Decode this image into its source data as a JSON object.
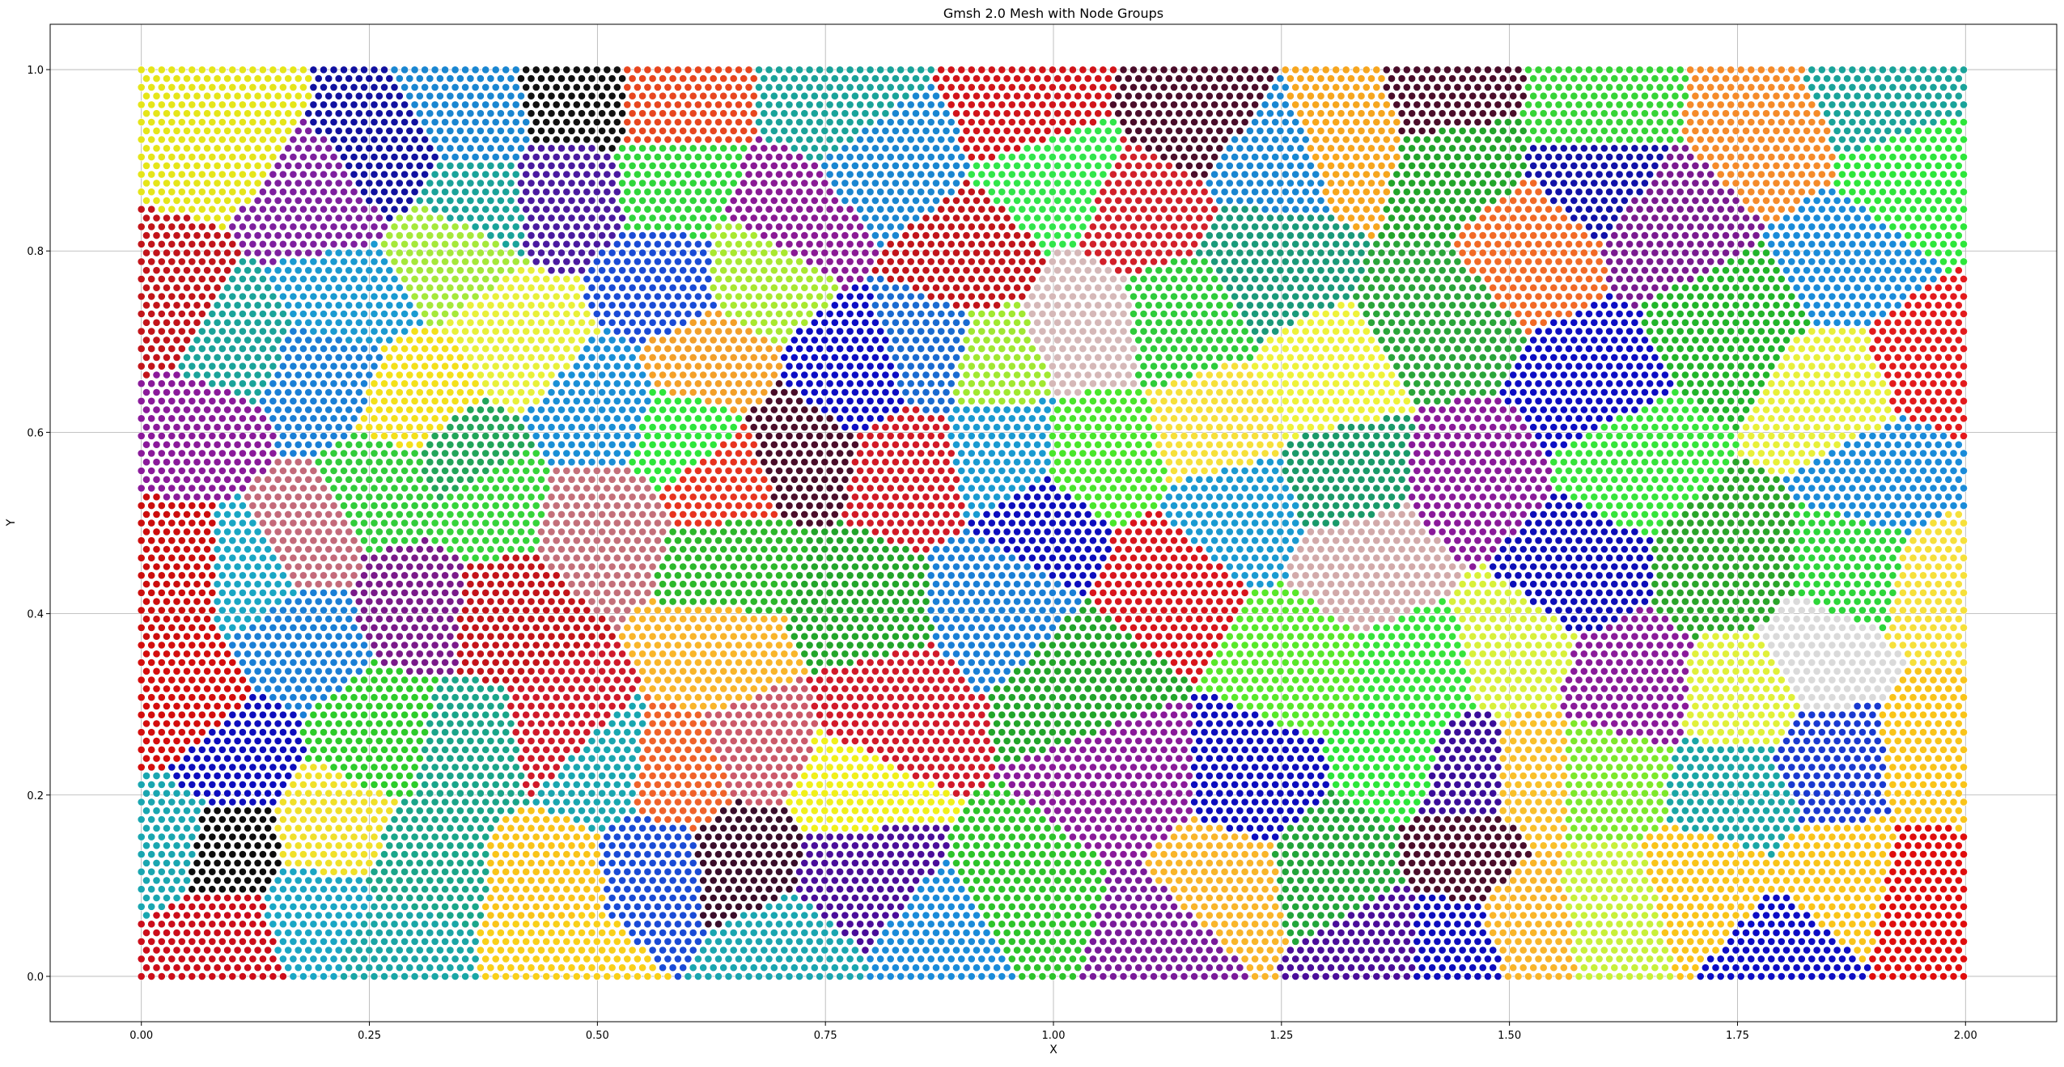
{
  "chart_data": {
    "type": "scatter",
    "title": "Gmsh 2.0 Mesh with Node Groups",
    "xlabel": "X",
    "ylabel": "Y",
    "xlim": [
      -0.1,
      2.1
    ],
    "ylim": [
      -0.05,
      1.05
    ],
    "x_ticks": [
      0.0,
      0.25,
      0.5,
      0.75,
      1.0,
      1.25,
      1.5,
      1.75,
      2.0
    ],
    "y_ticks": [
      0.0,
      0.2,
      0.4,
      0.6,
      0.8,
      1.0
    ],
    "x_tick_labels": [
      "0.00",
      "0.25",
      "0.50",
      "0.75",
      "1.00",
      "1.25",
      "1.50",
      "1.75",
      "2.00"
    ],
    "y_tick_labels": [
      "0.0",
      "0.2",
      "0.4",
      "0.6",
      "0.8",
      "1.0"
    ],
    "grid": true,
    "legend": false,
    "mesh": {
      "domain_x": [
        0.0,
        2.0
      ],
      "domain_y": [
        0.0,
        1.0
      ],
      "node_spacing": 0.0111,
      "marker_edge_color": "#ffffff"
    },
    "node_groups": [
      {
        "seed": [
          0.08,
          0.93
        ],
        "color": "#e5e51a"
      },
      {
        "seed": [
          0.2,
          0.85
        ],
        "color": "#7e1f9f"
      },
      {
        "seed": [
          0.27,
          0.9
        ],
        "color": "#1111a0"
      },
      {
        "seed": [
          0.36,
          0.95
        ],
        "color": "#1a86d1"
      },
      {
        "seed": [
          0.36,
          0.85
        ],
        "color": "#1aa39a"
      },
      {
        "seed": [
          0.34,
          0.81
        ],
        "color": "#a5e83a"
      },
      {
        "seed": [
          0.48,
          0.97
        ],
        "color": "#111111"
      },
      {
        "seed": [
          0.47,
          0.86
        ],
        "color": "#4a1aa0"
      },
      {
        "seed": [
          0.58,
          0.97
        ],
        "color": "#e8461f"
      },
      {
        "seed": [
          0.58,
          0.87
        ],
        "color": "#2fd63a"
      },
      {
        "seed": [
          0.57,
          0.77
        ],
        "color": "#1a4bd6"
      },
      {
        "seed": [
          0.68,
          0.78
        ],
        "color": "#a8e830"
      },
      {
        "seed": [
          0.71,
          0.83
        ],
        "color": "#8a1a95"
      },
      {
        "seed": [
          0.77,
          0.97
        ],
        "color": "#1aa39a"
      },
      {
        "seed": [
          0.82,
          0.9
        ],
        "color": "#1a86d1"
      },
      {
        "seed": [
          0.97,
          0.96
        ],
        "color": "#d2141a"
      },
      {
        "seed": [
          1.0,
          0.88
        ],
        "color": "#31e64a"
      },
      {
        "seed": [
          1.1,
          0.84
        ],
        "color": "#d2202a"
      },
      {
        "seed": [
          0.91,
          0.79
        ],
        "color": "#c2141a"
      },
      {
        "seed": [
          1.16,
          0.95
        ],
        "color": "#4a0d2a"
      },
      {
        "seed": [
          1.24,
          0.9
        ],
        "color": "#1a86d1"
      },
      {
        "seed": [
          1.32,
          0.93
        ],
        "color": "#f6a61f"
      },
      {
        "seed": [
          1.43,
          0.97
        ],
        "color": "#4a0d2a"
      },
      {
        "seed": [
          1.44,
          0.9
        ],
        "color": "#22a52a"
      },
      {
        "seed": [
          1.52,
          0.8
        ],
        "color": "#f26a26"
      },
      {
        "seed": [
          1.6,
          0.95
        ],
        "color": "#36d436"
      },
      {
        "seed": [
          1.6,
          0.89
        ],
        "color": "#1111a8"
      },
      {
        "seed": [
          1.68,
          0.83
        ],
        "color": "#7a1a90"
      },
      {
        "seed": [
          1.78,
          0.93
        ],
        "color": "#f58b2a"
      },
      {
        "seed": [
          1.9,
          0.98
        ],
        "color": "#1aa39a"
      },
      {
        "seed": [
          1.94,
          0.87
        ],
        "color": "#2de63a"
      },
      {
        "seed": [
          1.88,
          0.79
        ],
        "color": "#1a8bd9"
      },
      {
        "seed": [
          1.96,
          0.68
        ],
        "color": "#e31a1c"
      },
      {
        "seed": [
          0.03,
          0.74
        ],
        "color": "#c2141a"
      },
      {
        "seed": [
          0.1,
          0.7
        ],
        "color": "#1aa39a"
      },
      {
        "seed": [
          0.2,
          0.66
        ],
        "color": "#1a7fd6"
      },
      {
        "seed": [
          0.22,
          0.75
        ],
        "color": "#1a9ad1"
      },
      {
        "seed": [
          0.3,
          0.63
        ],
        "color": "#f3e01a"
      },
      {
        "seed": [
          0.42,
          0.7
        ],
        "color": "#e8f03a"
      },
      {
        "seed": [
          0.5,
          0.63
        ],
        "color": "#1a8fd6"
      },
      {
        "seed": [
          0.62,
          0.67
        ],
        "color": "#f3a02a"
      },
      {
        "seed": [
          0.6,
          0.6
        ],
        "color": "#2de63a"
      },
      {
        "seed": [
          0.72,
          0.58
        ],
        "color": "#4a0d2a"
      },
      {
        "seed": [
          0.78,
          0.66
        ],
        "color": "#0d0dc4"
      },
      {
        "seed": [
          0.87,
          0.69
        ],
        "color": "#1a6bd1"
      },
      {
        "seed": [
          0.93,
          0.68
        ],
        "color": "#a1e831"
      },
      {
        "seed": [
          1.03,
          0.72
        ],
        "color": "#d5b8b8"
      },
      {
        "seed": [
          1.14,
          0.73
        ],
        "color": "#2ecc3a"
      },
      {
        "seed": [
          1.23,
          0.79
        ],
        "color": "#1a9a7a"
      },
      {
        "seed": [
          1.18,
          0.6
        ],
        "color": "#f6e03a"
      },
      {
        "seed": [
          1.3,
          0.65
        ],
        "color": "#eef23a"
      },
      {
        "seed": [
          1.43,
          0.72
        ],
        "color": "#2aa53a"
      },
      {
        "seed": [
          1.59,
          0.65
        ],
        "color": "#0d0dc4"
      },
      {
        "seed": [
          1.74,
          0.72
        ],
        "color": "#22b52a"
      },
      {
        "seed": [
          1.86,
          0.64
        ],
        "color": "#e8f03a"
      },
      {
        "seed": [
          1.91,
          0.55
        ],
        "color": "#1a8bd9"
      },
      {
        "seed": [
          0.06,
          0.6
        ],
        "color": "#8a1a9a"
      },
      {
        "seed": [
          0.04,
          0.45
        ],
        "color": "#cc0d0d"
      },
      {
        "seed": [
          0.12,
          0.45
        ],
        "color": "#1aa6c4"
      },
      {
        "seed": [
          0.17,
          0.48
        ],
        "color": "#c46a7a"
      },
      {
        "seed": [
          0.18,
          0.37
        ],
        "color": "#1a7fd6"
      },
      {
        "seed": [
          0.27,
          0.54
        ],
        "color": "#31cc3a"
      },
      {
        "seed": [
          0.35,
          0.57
        ],
        "color": "#22a55a"
      },
      {
        "seed": [
          0.3,
          0.41
        ],
        "color": "#7a1a8a"
      },
      {
        "seed": [
          0.38,
          0.52
        ],
        "color": "#36d43a"
      },
      {
        "seed": [
          0.5,
          0.5
        ],
        "color": "#c4707a"
      },
      {
        "seed": [
          0.64,
          0.55
        ],
        "color": "#e8331f"
      },
      {
        "seed": [
          0.84,
          0.56
        ],
        "color": "#d21a26"
      },
      {
        "seed": [
          0.65,
          0.45
        ],
        "color": "#2cb82a"
      },
      {
        "seed": [
          0.78,
          0.41
        ],
        "color": "#22a52a"
      },
      {
        "seed": [
          0.94,
          0.58
        ],
        "color": "#1a9ad1"
      },
      {
        "seed": [
          1.05,
          0.57
        ],
        "color": "#49e62a"
      },
      {
        "seed": [
          0.99,
          0.49
        ],
        "color": "#0d0dbe"
      },
      {
        "seed": [
          0.95,
          0.42
        ],
        "color": "#1a7fd6"
      },
      {
        "seed": [
          1.12,
          0.43
        ],
        "color": "#d9151c"
      },
      {
        "seed": [
          1.2,
          0.52
        ],
        "color": "#1a9ad1"
      },
      {
        "seed": [
          1.32,
          0.56
        ],
        "color": "#1a9a6a"
      },
      {
        "seed": [
          1.35,
          0.45
        ],
        "color": "#d2aaaa"
      },
      {
        "seed": [
          1.46,
          0.55
        ],
        "color": "#8a1a9a"
      },
      {
        "seed": [
          1.57,
          0.45
        ],
        "color": "#0d0db8"
      },
      {
        "seed": [
          1.63,
          0.57
        ],
        "color": "#36e43a"
      },
      {
        "seed": [
          1.74,
          0.45
        ],
        "color": "#2aa52a"
      },
      {
        "seed": [
          1.88,
          0.45
        ],
        "color": "#2dd63a"
      },
      {
        "seed": [
          1.97,
          0.43
        ],
        "color": "#f6e03a"
      },
      {
        "seed": [
          0.05,
          0.3
        ],
        "color": "#d40d0d"
      },
      {
        "seed": [
          0.03,
          0.15
        ],
        "color": "#1aa6b0"
      },
      {
        "seed": [
          0.1,
          0.24
        ],
        "color": "#0d0dbe"
      },
      {
        "seed": [
          0.09,
          0.14
        ],
        "color": "#0d0d0d"
      },
      {
        "seed": [
          0.09,
          0.04
        ],
        "color": "#cc0d1a"
      },
      {
        "seed": [
          0.21,
          0.16
        ],
        "color": "#f0e02a"
      },
      {
        "seed": [
          0.19,
          0.07
        ],
        "color": "#1aa6c4"
      },
      {
        "seed": [
          0.26,
          0.27
        ],
        "color": "#2dcc2a"
      },
      {
        "seed": [
          0.36,
          0.25
        ],
        "color": "#1aa58a"
      },
      {
        "seed": [
          0.31,
          0.12
        ],
        "color": "#1aa68a"
      },
      {
        "seed": [
          0.28,
          0.03
        ],
        "color": "#1aa6a6"
      },
      {
        "seed": [
          0.4,
          0.4
        ],
        "color": "#c4141a"
      },
      {
        "seed": [
          0.46,
          0.27
        ],
        "color": "#d01a2a"
      },
      {
        "seed": [
          0.5,
          0.23
        ],
        "color": "#1aa6b0"
      },
      {
        "seed": [
          0.45,
          0.11
        ],
        "color": "#f9c41a"
      },
      {
        "seed": [
          0.46,
          0.02
        ],
        "color": "#f9d01a"
      },
      {
        "seed": [
          0.56,
          0.12
        ],
        "color": "#1a4bd6"
      },
      {
        "seed": [
          0.59,
          0.22
        ],
        "color": "#f0622a"
      },
      {
        "seed": [
          0.68,
          0.25
        ],
        "color": "#cc5a6a"
      },
      {
        "seed": [
          0.64,
          0.36
        ],
        "color": "#f9b52a"
      },
      {
        "seed": [
          0.66,
          0.13
        ],
        "color": "#3a0d2a"
      },
      {
        "seed": [
          0.77,
          0.21
        ],
        "color": "#f0f01a"
      },
      {
        "seed": [
          0.81,
          0.29
        ],
        "color": "#d21a2a"
      },
      {
        "seed": [
          0.78,
          0.11
        ],
        "color": "#4a0d9a"
      },
      {
        "seed": [
          0.71,
          0.03
        ],
        "color": "#1aa6b0"
      },
      {
        "seed": [
          0.88,
          0.03
        ],
        "color": "#1a8bd9"
      },
      {
        "seed": [
          0.97,
          0.08
        ],
        "color": "#2dc42a"
      },
      {
        "seed": [
          1.04,
          0.33
        ],
        "color": "#22a52a"
      },
      {
        "seed": [
          1.08,
          0.22
        ],
        "color": "#8a1a9a"
      },
      {
        "seed": [
          1.12,
          0.04
        ],
        "color": "#7a1a9a"
      },
      {
        "seed": [
          1.18,
          0.1
        ],
        "color": "#f9b52a"
      },
      {
        "seed": [
          1.22,
          0.22
        ],
        "color": "#0d0dbe"
      },
      {
        "seed": [
          1.27,
          0.34
        ],
        "color": "#58e82a"
      },
      {
        "seed": [
          1.31,
          0.12
        ],
        "color": "#22a53a"
      },
      {
        "seed": [
          1.38,
          0.24
        ],
        "color": "#2de63a"
      },
      {
        "seed": [
          1.36,
          0.03
        ],
        "color": "#4a0d9a"
      },
      {
        "seed": [
          1.43,
          0.03
        ],
        "color": "#0d0dbe"
      },
      {
        "seed": [
          1.45,
          0.14
        ],
        "color": "#4a0d2a"
      },
      {
        "seed": [
          1.45,
          0.22
        ],
        "color": "#3a0d9a"
      },
      {
        "seed": [
          1.4,
          0.34
        ],
        "color": "#36e43a"
      },
      {
        "seed": [
          1.5,
          0.36
        ],
        "color": "#d8f03a"
      },
      {
        "seed": [
          1.53,
          0.22
        ],
        "color": "#f9c02a"
      },
      {
        "seed": [
          1.53,
          0.06
        ],
        "color": "#f9b52a"
      },
      {
        "seed": [
          1.6,
          0.07
        ],
        "color": "#c8f03a"
      },
      {
        "seed": [
          1.6,
          0.22
        ],
        "color": "#7de82a"
      },
      {
        "seed": [
          1.63,
          0.32
        ],
        "color": "#8a1a9a"
      },
      {
        "seed": [
          1.72,
          0.1
        ],
        "color": "#f9c41a"
      },
      {
        "seed": [
          1.75,
          0.2
        ],
        "color": "#1aa6a6"
      },
      {
        "seed": [
          1.76,
          0.31
        ],
        "color": "#e0f03a"
      },
      {
        "seed": [
          1.8,
          0.03
        ],
        "color": "#0d0dc4"
      },
      {
        "seed": [
          1.84,
          0.35
        ],
        "color": "#dadada"
      },
      {
        "seed": [
          1.85,
          0.24
        ],
        "color": "#1a3ad0"
      },
      {
        "seed": [
          1.86,
          0.1
        ],
        "color": "#f9c41a"
      },
      {
        "seed": [
          1.97,
          0.25
        ],
        "color": "#f9c41a"
      },
      {
        "seed": [
          1.96,
          0.08
        ],
        "color": "#e00d0d"
      }
    ]
  }
}
